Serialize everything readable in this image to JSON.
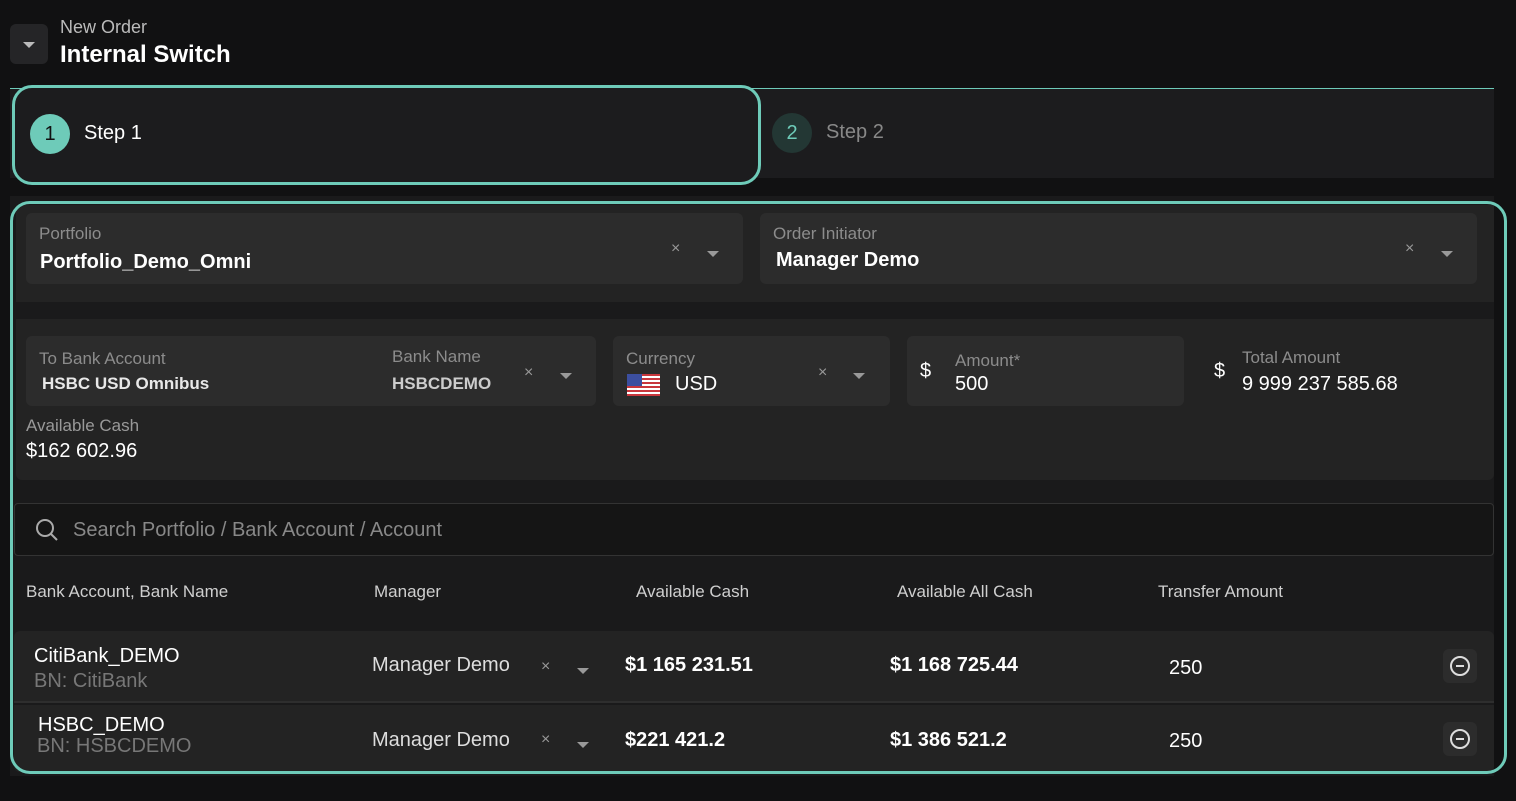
{
  "header": {
    "subtitle": "New Order",
    "title": "Internal Switch"
  },
  "steps": [
    {
      "number": "1",
      "label": "Step 1",
      "active": true
    },
    {
      "number": "2",
      "label": "Step 2",
      "active": false
    }
  ],
  "accent": "#6ecbb9",
  "portfolio": {
    "label": "Portfolio",
    "value": "Portfolio_Demo_Omni"
  },
  "initiator": {
    "label": "Order Initiator",
    "value": "Manager Demo"
  },
  "to_bank": {
    "label": "To Bank Account",
    "value": "HSBC USD Omnibus",
    "bank_name_label": "Bank Name",
    "bank_name": "HSBCDEMO"
  },
  "currency": {
    "label": "Currency",
    "value": "USD",
    "flag": "us-flag-icon"
  },
  "amount": {
    "label": "Amount*",
    "value": "500",
    "symbol": "$"
  },
  "total": {
    "label": "Total Amount",
    "value": "9 999 237 585.68",
    "symbol": "$"
  },
  "available_cash": {
    "label": "Available Cash",
    "value": "$162 602.96"
  },
  "search": {
    "placeholder": "Search Portfolio / Bank Account / Account"
  },
  "table": {
    "headers": [
      "Bank Account, Bank Name",
      "Manager",
      "Available Cash",
      "Available All Cash",
      "Transfer Amount"
    ],
    "rows": [
      {
        "account": "CitiBank_DEMO",
        "bank": "BN: CitiBank",
        "manager": "Manager Demo",
        "cash": "$1 165 231.51",
        "all_cash": "$1 168 725.44",
        "transfer": "250"
      },
      {
        "account": "HSBC_DEMO",
        "bank": "BN: HSBCDEMO",
        "manager": "Manager Demo",
        "cash": "$221 421.2",
        "all_cash": "$1 386 521.2",
        "transfer": "250"
      }
    ]
  },
  "clear_symbol": "×"
}
